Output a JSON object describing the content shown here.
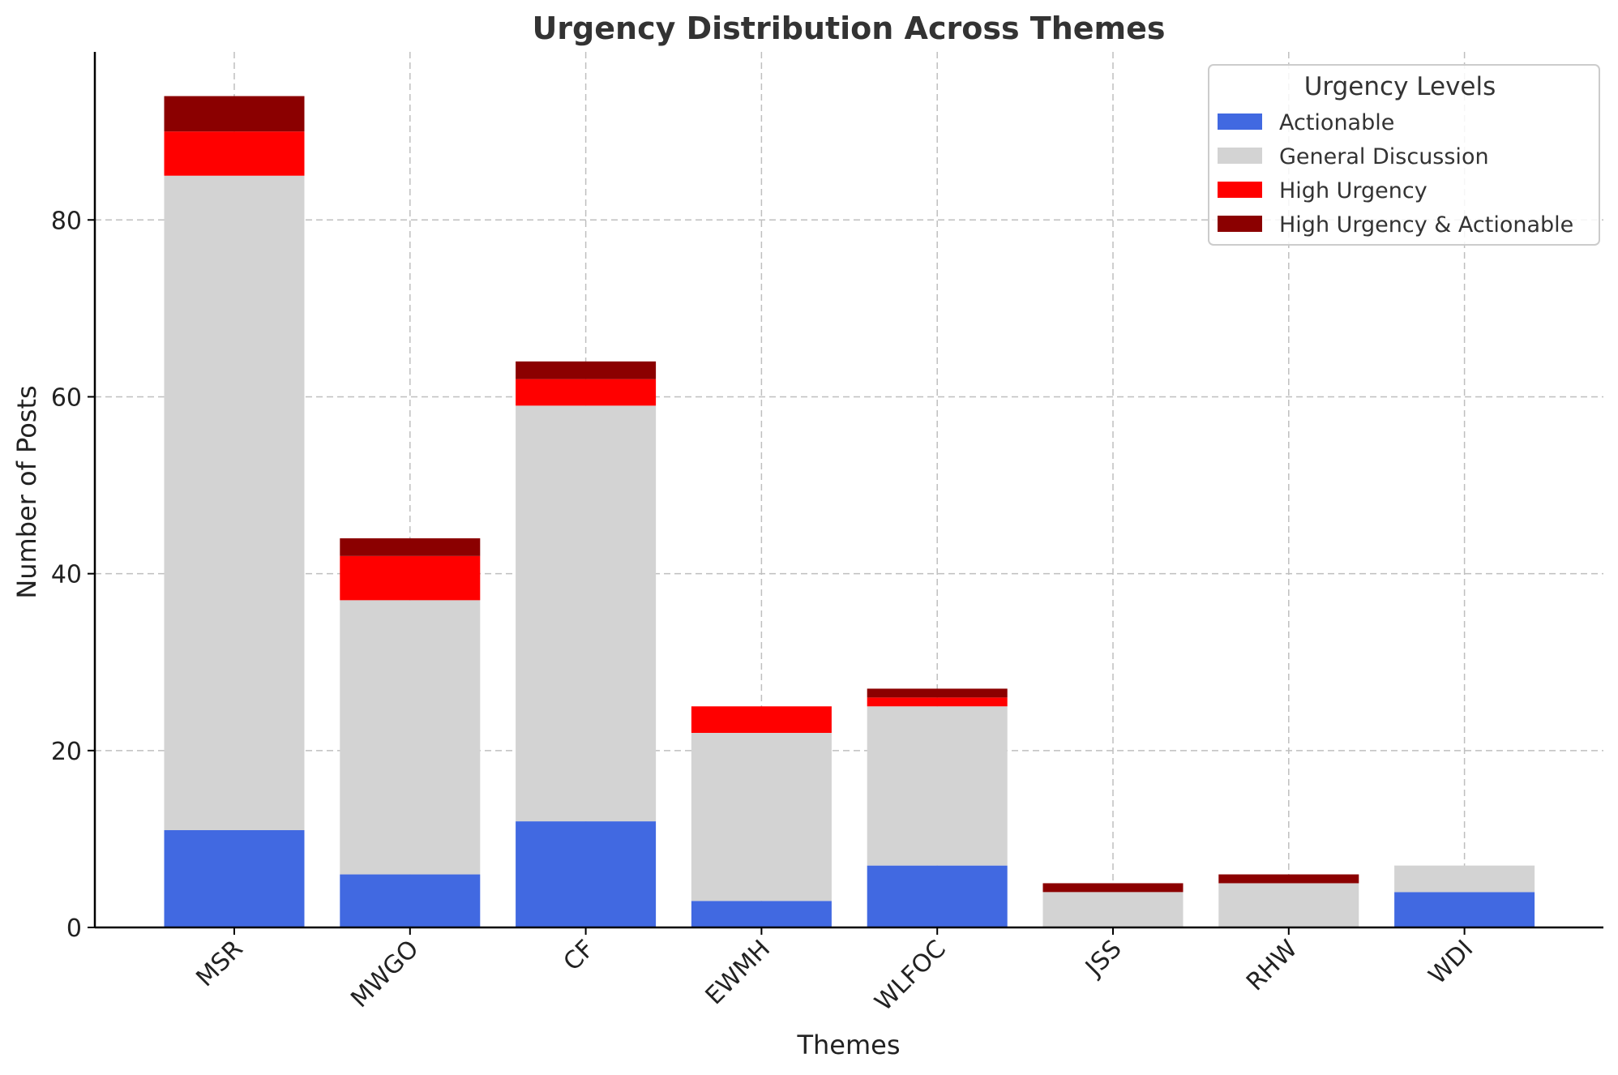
{
  "chart_data": {
    "type": "bar",
    "stacked": true,
    "title": "Urgency Distribution Across Themes",
    "xlabel": "Themes",
    "ylabel": "Number of Posts",
    "categories": [
      "MSR",
      "MWGO",
      "CF",
      "EWMH",
      "WLFOC",
      "JSS",
      "RHW",
      "WDI"
    ],
    "ylim": [
      0,
      99
    ],
    "yticks": [
      0,
      20,
      40,
      60,
      80
    ],
    "grid": true,
    "legend": {
      "title": "Urgency Levels",
      "placement": "top-right"
    },
    "series": [
      {
        "name": "Actionable",
        "color": "#4169e1",
        "values": [
          11,
          6,
          12,
          3,
          7,
          0,
          0,
          4
        ]
      },
      {
        "name": "General Discussion",
        "color": "#d3d3d3",
        "values": [
          74,
          31,
          47,
          19,
          18,
          4,
          5,
          3
        ]
      },
      {
        "name": "High Urgency",
        "color": "#ff0000",
        "values": [
          5,
          5,
          3,
          3,
          1,
          0,
          0,
          0
        ]
      },
      {
        "name": "High Urgency & Actionable",
        "color": "#8b0000",
        "values": [
          4,
          2,
          2,
          0,
          1,
          1,
          1,
          0
        ]
      }
    ]
  }
}
